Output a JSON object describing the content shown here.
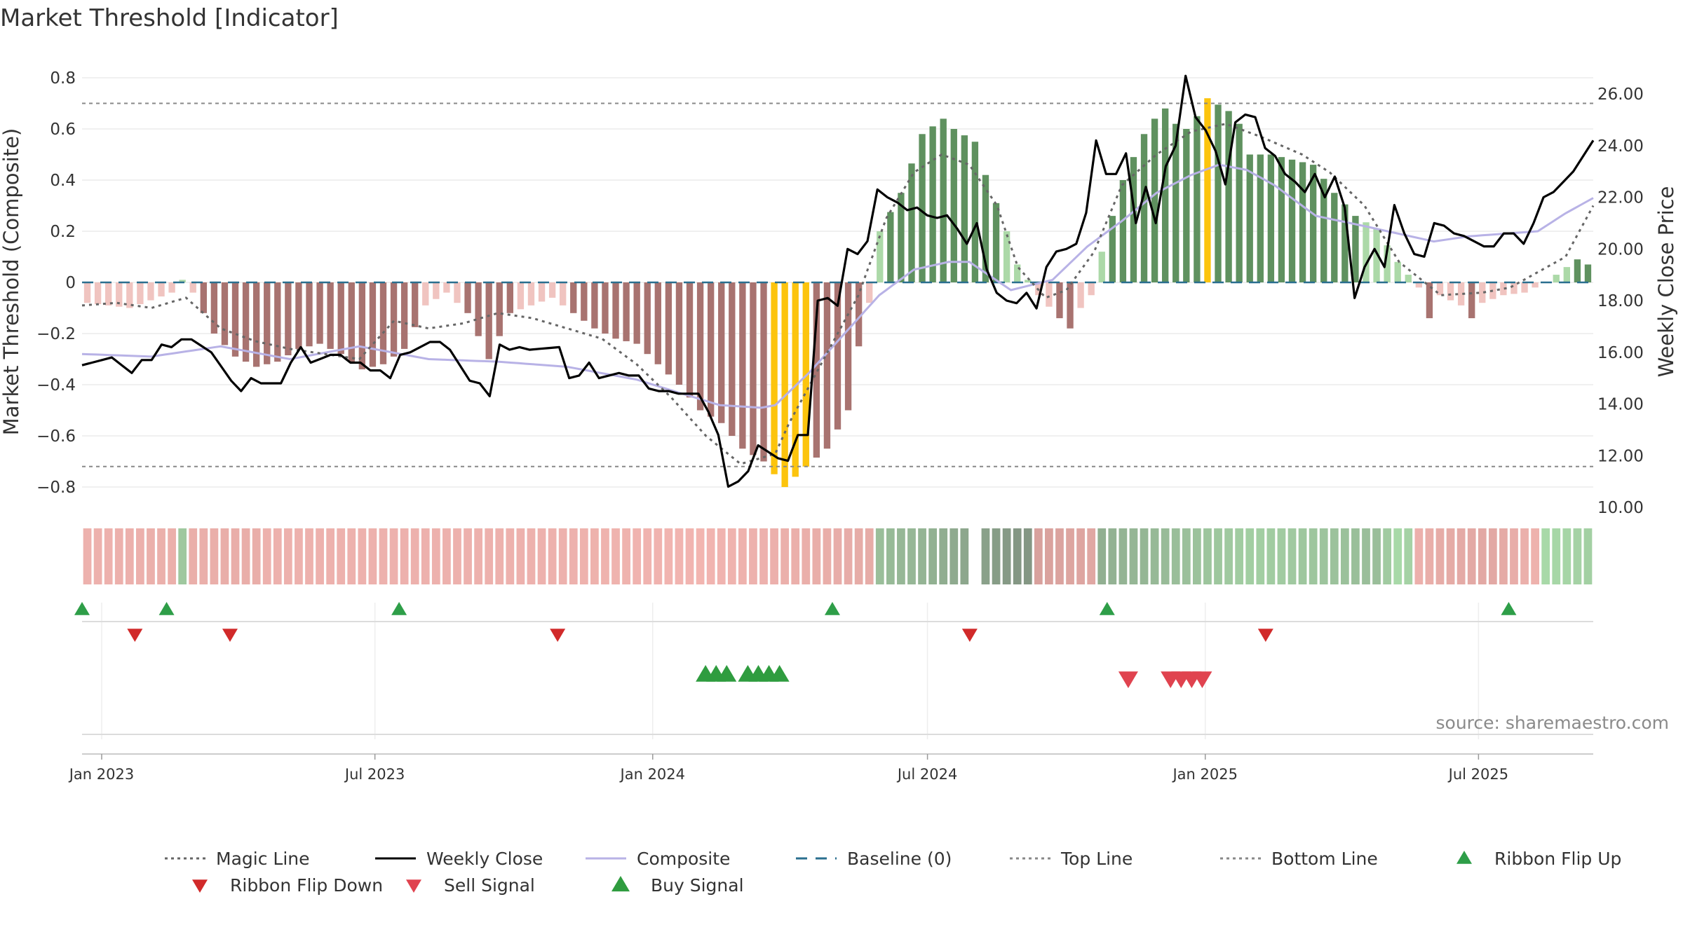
{
  "title": "Market Threshold [Indicator]",
  "source": "source: sharemaestro.com",
  "colors": {
    "strong_pos": "#5f915f",
    "weak_pos": "#acd9a8",
    "strong_neg": "#a87370",
    "weak_neg": "#f0c4c0",
    "extreme": "#fcc40d",
    "close": "#000000",
    "composite": "#b8b2e6",
    "magic": "#666666",
    "baseline": "#2a6f8f",
    "ribbon_up": "#2e9e48",
    "ribbon_down": "#d12a2a",
    "sell": "#e0434f",
    "buy": "#2f9c3f"
  },
  "legend": [
    {
      "label": "Magic Line",
      "icon": "dotted-line-icon",
      "color": "#666666"
    },
    {
      "label": "Weekly Close",
      "icon": "solid-line-icon",
      "color": "#000000"
    },
    {
      "label": "Composite",
      "icon": "solid-line-icon",
      "color": "#b8b2e6"
    },
    {
      "label": "Baseline (0)",
      "icon": "dashed-line-icon",
      "color": "#2a6f8f"
    },
    {
      "label": "Top Line",
      "icon": "dotted-line-icon",
      "color": "#888888"
    },
    {
      "label": "Bottom Line",
      "icon": "dotted-line-icon",
      "color": "#888888"
    },
    {
      "label": "Ribbon Flip Up",
      "icon": "triangle-up-icon",
      "color": "#2e9e48"
    },
    {
      "label": "Ribbon Flip Down",
      "icon": "triangle-down-icon",
      "color": "#d12a2a"
    },
    {
      "label": "Sell Signal",
      "icon": "triangle-down-icon",
      "color": "#e0434f"
    },
    {
      "label": "Buy Signal",
      "icon": "triangle-up-icon",
      "color": "#2f9c3f"
    }
  ],
  "chart_data": {
    "type": "bar",
    "title": "Market Threshold [Indicator]",
    "ylabel": "Market Threshold (Composite)",
    "y2label": "Weekly Close Price",
    "ylim": [
      -0.88,
      0.8
    ],
    "y2lim": [
      10.0,
      27.0
    ],
    "yticks": [
      "0.8",
      "0.6",
      "0.4",
      "0.2",
      "0",
      "−0.2",
      "−0.4",
      "−0.6",
      "−0.8"
    ],
    "y2ticks": [
      "26.00",
      "24.00",
      "22.00",
      "20.00",
      "18.00",
      "16.00",
      "14.00",
      "12.00",
      "10.00"
    ],
    "xticks": [
      "Jan 2023",
      "Jul 2023",
      "Jan 2024",
      "Jul 2024",
      "Jan 2025",
      "Jul 2025"
    ],
    "x_start": "2022-12-19",
    "x_end": "2025-09-15",
    "top_line": 0.7,
    "bottom_line": -0.72,
    "baseline": 0,
    "grid": true,
    "legend_position": "bottom",
    "anchors": {
      "composite": [
        [
          0,
          -0.28
        ],
        [
          10,
          -0.29
        ],
        [
          20,
          -0.25
        ],
        [
          30,
          -0.3
        ],
        [
          40,
          -0.25
        ],
        [
          50,
          -0.3
        ],
        [
          60,
          -0.31
        ],
        [
          70,
          -0.33
        ],
        [
          80,
          -0.38
        ],
        [
          92,
          -0.48
        ],
        [
          98,
          -0.49
        ],
        [
          100,
          -0.48
        ],
        [
          105,
          -0.35
        ],
        [
          110,
          -0.2
        ],
        [
          115,
          -0.05
        ],
        [
          120,
          0.05
        ],
        [
          125,
          0.08
        ],
        [
          128,
          0.08
        ],
        [
          134,
          -0.03
        ],
        [
          140,
          0.01
        ],
        [
          145,
          0.14
        ],
        [
          150,
          0.24
        ],
        [
          155,
          0.35
        ],
        [
          160,
          0.42
        ],
        [
          164,
          0.46
        ],
        [
          168,
          0.44
        ],
        [
          172,
          0.38
        ],
        [
          178,
          0.26
        ],
        [
          185,
          0.22
        ],
        [
          195,
          0.16
        ],
        [
          200,
          0.18
        ],
        [
          210,
          0.2
        ],
        [
          214,
          0.27
        ],
        [
          218,
          0.33
        ]
      ],
      "magic": [
        [
          0,
          -0.09
        ],
        [
          5,
          -0.08
        ],
        [
          10,
          -0.1
        ],
        [
          15,
          -0.06
        ],
        [
          20,
          -0.18
        ],
        [
          25,
          -0.23
        ],
        [
          30,
          -0.26
        ],
        [
          40,
          -0.3
        ],
        [
          45,
          -0.15
        ],
        [
          50,
          -0.18
        ],
        [
          55,
          -0.16
        ],
        [
          60,
          -0.12
        ],
        [
          65,
          -0.14
        ],
        [
          70,
          -0.18
        ],
        [
          75,
          -0.22
        ],
        [
          80,
          -0.32
        ],
        [
          85,
          -0.45
        ],
        [
          90,
          -0.6
        ],
        [
          95,
          -0.71
        ],
        [
          100,
          -0.67
        ],
        [
          102,
          -0.55
        ],
        [
          105,
          -0.4
        ],
        [
          108,
          -0.25
        ],
        [
          112,
          -0.05
        ],
        [
          116,
          0.25
        ],
        [
          120,
          0.43
        ],
        [
          124,
          0.5
        ],
        [
          128,
          0.46
        ],
        [
          132,
          0.3
        ],
        [
          135,
          0.06
        ],
        [
          139,
          -0.06
        ],
        [
          142,
          -0.03
        ],
        [
          146,
          0.12
        ],
        [
          150,
          0.38
        ],
        [
          155,
          0.5
        ],
        [
          160,
          0.59
        ],
        [
          165,
          0.62
        ],
        [
          170,
          0.57
        ],
        [
          176,
          0.5
        ],
        [
          180,
          0.43
        ],
        [
          185,
          0.3
        ],
        [
          190,
          0.08
        ],
        [
          196,
          -0.05
        ],
        [
          202,
          -0.04
        ],
        [
          206,
          -0.02
        ],
        [
          210,
          0.04
        ],
        [
          214,
          0.1
        ],
        [
          218,
          0.3
        ]
      ],
      "close": [
        [
          0,
          15.5
        ],
        [
          3,
          15.8
        ],
        [
          5,
          15.2
        ],
        [
          6,
          15.7
        ],
        [
          7,
          15.7
        ],
        [
          8,
          16.3
        ],
        [
          9,
          16.2
        ],
        [
          10,
          16.5
        ],
        [
          11,
          16.5
        ],
        [
          13,
          16.0
        ],
        [
          15,
          14.9
        ],
        [
          16,
          14.5
        ],
        [
          17,
          15.0
        ],
        [
          18,
          14.8
        ],
        [
          20,
          14.8
        ],
        [
          21,
          15.6
        ],
        [
          22,
          16.2
        ],
        [
          23,
          15.6
        ],
        [
          25,
          15.9
        ],
        [
          26,
          15.9
        ],
        [
          27,
          15.6
        ],
        [
          28,
          15.6
        ],
        [
          29,
          15.3
        ],
        [
          30,
          15.3
        ],
        [
          31,
          15.0
        ],
        [
          32,
          15.9
        ],
        [
          33,
          16.0
        ],
        [
          35,
          16.4
        ],
        [
          36,
          16.4
        ],
        [
          37,
          16.1
        ],
        [
          39,
          14.9
        ],
        [
          40,
          14.8
        ],
        [
          41,
          14.3
        ],
        [
          42,
          16.3
        ],
        [
          43,
          16.1
        ],
        [
          44,
          16.2
        ],
        [
          45,
          16.1
        ],
        [
          48,
          16.2
        ],
        [
          49,
          15.0
        ],
        [
          50,
          15.1
        ],
        [
          51,
          15.6
        ],
        [
          52,
          15.0
        ],
        [
          53,
          15.1
        ],
        [
          54,
          15.2
        ],
        [
          55,
          15.1
        ],
        [
          56,
          15.1
        ],
        [
          57,
          14.6
        ],
        [
          58,
          14.5
        ],
        [
          59,
          14.5
        ],
        [
          60,
          14.4
        ],
        [
          62,
          14.4
        ],
        [
          63,
          13.7
        ],
        [
          64,
          12.8
        ],
        [
          65,
          10.8
        ],
        [
          66,
          11.0
        ],
        [
          67,
          11.4
        ],
        [
          68,
          12.4
        ],
        [
          70,
          11.9
        ],
        [
          71,
          11.8
        ],
        [
          72,
          12.8
        ],
        [
          73,
          12.8
        ],
        [
          74,
          18.0
        ],
        [
          75,
          18.1
        ],
        [
          76,
          17.8
        ],
        [
          77,
          20.0
        ],
        [
          78,
          19.8
        ],
        [
          79,
          20.3
        ],
        [
          80,
          22.3
        ],
        [
          81,
          22.0
        ],
        [
          82,
          21.8
        ],
        [
          83,
          21.5
        ],
        [
          84,
          21.6
        ],
        [
          85,
          21.3
        ],
        [
          86,
          21.2
        ],
        [
          87,
          21.3
        ],
        [
          88,
          20.8
        ],
        [
          89,
          20.2
        ],
        [
          90,
          21.0
        ],
        [
          91,
          19.2
        ],
        [
          92,
          18.3
        ],
        [
          93,
          18.0
        ],
        [
          94,
          17.9
        ],
        [
          95,
          18.3
        ],
        [
          96,
          17.7
        ],
        [
          97,
          19.3
        ],
        [
          98,
          19.9
        ],
        [
          99,
          20.0
        ],
        [
          100,
          20.2
        ],
        [
          101,
          21.4
        ],
        [
          102,
          24.2
        ],
        [
          103,
          22.9
        ],
        [
          104,
          22.9
        ],
        [
          105,
          23.7
        ],
        [
          106,
          21.0
        ],
        [
          107,
          22.4
        ],
        [
          108,
          21.0
        ],
        [
          109,
          23.2
        ],
        [
          110,
          24.0
        ],
        [
          111,
          26.7
        ],
        [
          112,
          25.1
        ],
        [
          113,
          24.6
        ],
        [
          114,
          23.8
        ],
        [
          115,
          22.5
        ],
        [
          116,
          24.9
        ],
        [
          117,
          25.2
        ],
        [
          118,
          25.1
        ],
        [
          119,
          23.9
        ],
        [
          120,
          23.6
        ],
        [
          121,
          22.9
        ],
        [
          122,
          22.6
        ],
        [
          123,
          22.2
        ],
        [
          124,
          22.9
        ],
        [
          125,
          22.0
        ],
        [
          126,
          22.8
        ],
        [
          127,
          21.6
        ],
        [
          128,
          18.1
        ],
        [
          129,
          19.3
        ],
        [
          130,
          20.0
        ],
        [
          131,
          19.3
        ],
        [
          132,
          21.7
        ],
        [
          133,
          20.6
        ],
        [
          134,
          19.8
        ],
        [
          135,
          19.7
        ],
        [
          136,
          21.0
        ],
        [
          137,
          20.9
        ],
        [
          138,
          20.6
        ],
        [
          139,
          20.5
        ],
        [
          140,
          20.3
        ],
        [
          141,
          20.1
        ],
        [
          142,
          20.1
        ],
        [
          143,
          20.6
        ],
        [
          144,
          20.6
        ],
        [
          145,
          20.2
        ],
        [
          146,
          21.0
        ],
        [
          147,
          22.0
        ],
        [
          148,
          22.2
        ],
        [
          149,
          22.6
        ],
        [
          150,
          23.0
        ],
        [
          151,
          23.6
        ],
        [
          152,
          24.2
        ]
      ],
      "bars": [
        [
          0,
          -0.08
        ],
        [
          4,
          -0.1
        ],
        [
          8,
          -0.04
        ],
        [
          9,
          0.01
        ],
        [
          10,
          -0.04
        ],
        [
          12,
          -0.2
        ],
        [
          14,
          -0.29
        ],
        [
          16,
          -0.33
        ],
        [
          18,
          -0.31
        ],
        [
          20,
          -0.26
        ],
        [
          22,
          -0.24
        ],
        [
          24,
          -0.28
        ],
        [
          26,
          -0.34
        ],
        [
          28,
          -0.32
        ],
        [
          30,
          -0.26
        ],
        [
          32,
          -0.09
        ],
        [
          34,
          -0.04
        ],
        [
          36,
          -0.12
        ],
        [
          38,
          -0.3
        ],
        [
          40,
          -0.12
        ],
        [
          44,
          -0.06
        ],
        [
          46,
          -0.12
        ],
        [
          48,
          -0.18
        ],
        [
          50,
          -0.22
        ],
        [
          52,
          -0.24
        ],
        [
          54,
          -0.32
        ],
        [
          56,
          -0.4
        ],
        [
          58,
          -0.5
        ],
        [
          60,
          -0.55
        ],
        [
          62,
          -0.65
        ],
        [
          64,
          -0.7
        ],
        [
          66,
          -0.8
        ],
        [
          68,
          -0.72
        ],
        [
          70,
          -0.65
        ],
        [
          72,
          -0.5
        ],
        [
          73,
          -0.25
        ],
        [
          74,
          -0.08
        ],
        [
          75,
          0.2
        ],
        [
          77,
          0.35
        ],
        [
          79,
          0.58
        ],
        [
          81,
          0.64
        ],
        [
          82,
          0.6
        ],
        [
          84,
          0.55
        ],
        [
          85,
          0.42
        ],
        [
          87,
          0.2
        ],
        [
          88,
          0.07
        ],
        [
          90,
          -0.05
        ],
        [
          92,
          -0.14
        ],
        [
          93,
          -0.18
        ],
        [
          94,
          -0.1
        ],
        [
          95,
          -0.05
        ],
        [
          96,
          0.12
        ],
        [
          98,
          0.4
        ],
        [
          100,
          0.58
        ],
        [
          101,
          0.64
        ],
        [
          102,
          0.68
        ],
        [
          103,
          0.62
        ],
        [
          104,
          0.6
        ],
        [
          105,
          0.65
        ],
        [
          106,
          0.72
        ],
        [
          108,
          0.67
        ],
        [
          109,
          0.62
        ],
        [
          110,
          0.5
        ],
        [
          112,
          0.5
        ],
        [
          114,
          0.48
        ],
        [
          116,
          0.46
        ],
        [
          118,
          0.35
        ],
        [
          120,
          0.26
        ],
        [
          122,
          0.21
        ],
        [
          124,
          0.08
        ],
        [
          126,
          -0.02
        ],
        [
          127,
          -0.14
        ],
        [
          128,
          -0.05
        ],
        [
          130,
          -0.09
        ],
        [
          131,
          -0.14
        ],
        [
          132,
          -0.08
        ],
        [
          134,
          -0.05
        ],
        [
          136,
          -0.04
        ],
        [
          138,
          0.0
        ],
        [
          140,
          0.06
        ],
        [
          141,
          0.09
        ],
        [
          142,
          0.07
        ],
        [
          143,
          0.1
        ],
        [
          144,
          0.16
        ],
        [
          145,
          0.15
        ],
        [
          146,
          0.28
        ],
        [
          147,
          0.36
        ],
        [
          148,
          0.43
        ],
        [
          149,
          0.5
        ]
      ],
      "ribbon": [
        [
          0,
          0.4
        ],
        [
          14,
          0.5
        ],
        [
          15,
          0.4
        ],
        [
          40,
          0.4
        ],
        [
          52,
          0.3
        ],
        [
          66,
          0.55
        ],
        [
          68,
          0.55
        ],
        [
          80,
          0.9
        ],
        [
          86,
          0.7
        ],
        [
          100,
          0.4
        ],
        [
          110,
          0.55
        ],
        [
          112,
          0.3
        ],
        [
          116,
          0.55
        ],
        [
          120,
          0.65
        ],
        [
          125,
          0.3
        ],
        [
          130,
          0.4
        ]
      ]
    },
    "signals": {
      "ribbon_flip_up": [
        "2022-12-19",
        "2023-02-13",
        "2023-07-17",
        "2024-04-29",
        "2024-10-28",
        "2025-07-21"
      ],
      "ribbon_flip_down": [
        "2023-01-23",
        "2023-03-27",
        "2023-10-30",
        "2024-07-29",
        "2025-02-10"
      ],
      "buy_signal": [
        "2024-02-05",
        "2024-02-12",
        "2024-02-19",
        "2024-03-04",
        "2024-03-11",
        "2024-03-18",
        "2024-03-25"
      ],
      "sell_signal": [
        "2024-11-11",
        "2024-12-09",
        "2024-12-16",
        "2024-12-23",
        "2024-12-30"
      ]
    }
  }
}
